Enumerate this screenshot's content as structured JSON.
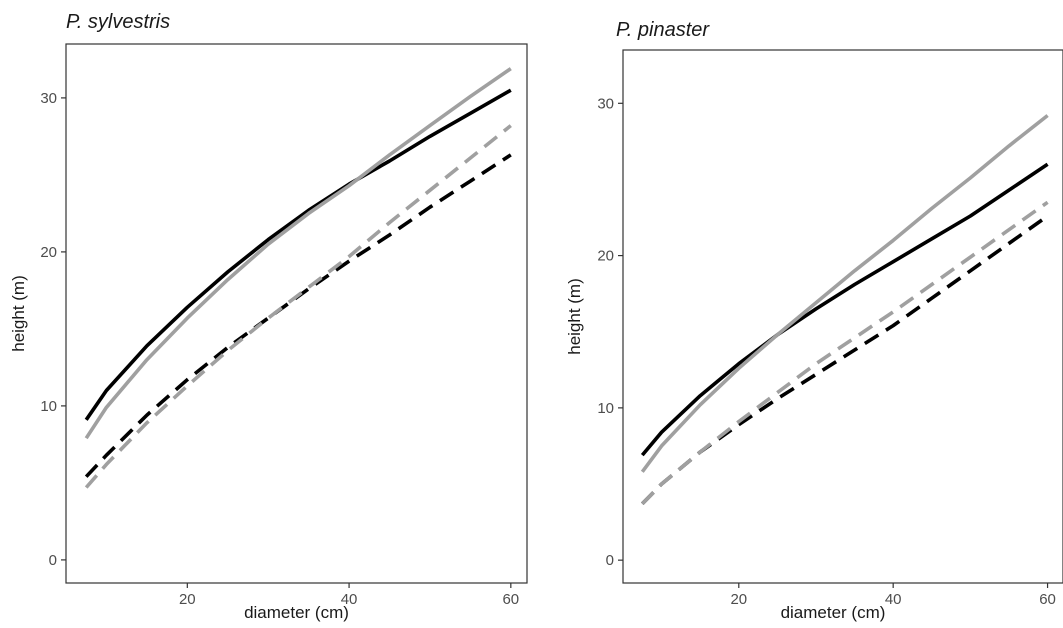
{
  "chart_data": [
    {
      "type": "line",
      "title": "P.  sylvestris",
      "xlabel": "diameter (cm)",
      "ylabel": "height (m)",
      "xlim": [
        5,
        62
      ],
      "ylim": [
        -1.5,
        33.5
      ],
      "xticks": [
        20,
        40,
        60
      ],
      "yticks": [
        0,
        10,
        20,
        30
      ],
      "x_tick_labels": [
        "20",
        "40",
        "60"
      ],
      "y_tick_labels": [
        "0",
        "10",
        "20",
        "30"
      ],
      "grid": false,
      "legend": "none",
      "series": [
        {
          "color": "#000000",
          "dash": "solid",
          "x": [
            7.5,
            10,
            15,
            20,
            25,
            30,
            35,
            40,
            45,
            50,
            55,
            60
          ],
          "values": [
            9.1,
            11.0,
            13.9,
            16.4,
            18.7,
            20.8,
            22.7,
            24.4,
            25.9,
            27.5,
            29.0,
            30.5
          ]
        },
        {
          "color": "#a0a0a0",
          "dash": "solid",
          "x": [
            7.5,
            10,
            15,
            20,
            25,
            30,
            35,
            40,
            45,
            50,
            55,
            60
          ],
          "values": [
            7.9,
            9.9,
            13.0,
            15.7,
            18.2,
            20.5,
            22.5,
            24.3,
            26.3,
            28.2,
            30.1,
            31.9
          ]
        },
        {
          "color": "#000000",
          "dash": "dashed",
          "x": [
            7.5,
            10,
            15,
            20,
            25,
            30,
            35,
            40,
            45,
            50,
            55,
            60
          ],
          "values": [
            5.4,
            6.8,
            9.4,
            11.7,
            13.8,
            15.7,
            17.6,
            19.4,
            21.1,
            22.9,
            24.6,
            26.3
          ]
        },
        {
          "color": "#a0a0a0",
          "dash": "dashed",
          "x": [
            7.5,
            10,
            15,
            20,
            25,
            30,
            35,
            40,
            45,
            50,
            55,
            60
          ],
          "values": [
            4.7,
            6.2,
            8.9,
            11.3,
            13.6,
            15.7,
            17.7,
            19.7,
            21.9,
            24.0,
            26.1,
            28.2
          ]
        }
      ]
    },
    {
      "type": "line",
      "title": "P. pinaster",
      "xlabel": "diameter (cm)",
      "ylabel": "height (m)",
      "xlim": [
        5,
        62
      ],
      "ylim": [
        -1.5,
        33.5
      ],
      "xticks": [
        20,
        40,
        60
      ],
      "yticks": [
        0,
        10,
        20,
        30
      ],
      "x_tick_labels": [
        "20",
        "40",
        "60"
      ],
      "y_tick_labels": [
        "0",
        "10",
        "20",
        "30"
      ],
      "grid": false,
      "legend": "none",
      "series": [
        {
          "color": "#000000",
          "dash": "solid",
          "x": [
            7.5,
            10,
            15,
            20,
            25,
            30,
            35,
            40,
            45,
            50,
            55,
            60
          ],
          "values": [
            6.9,
            8.4,
            10.8,
            12.9,
            14.8,
            16.5,
            18.1,
            19.6,
            21.1,
            22.6,
            24.3,
            26.0
          ]
        },
        {
          "color": "#a0a0a0",
          "dash": "solid",
          "x": [
            7.5,
            10,
            15,
            20,
            25,
            30,
            35,
            40,
            45,
            50,
            55,
            60
          ],
          "values": [
            5.8,
            7.5,
            10.2,
            12.6,
            14.8,
            16.9,
            19.0,
            21.0,
            23.1,
            25.1,
            27.2,
            29.2
          ]
        },
        {
          "color": "#000000",
          "dash": "dashed",
          "x": [
            7.5,
            10,
            15,
            20,
            25,
            30,
            35,
            40,
            45,
            50,
            55,
            60
          ],
          "values": [
            3.7,
            5.0,
            7.1,
            8.9,
            10.6,
            12.2,
            13.8,
            15.4,
            17.2,
            19.0,
            20.8,
            22.6
          ]
        },
        {
          "color": "#a0a0a0",
          "dash": "dashed",
          "x": [
            7.5,
            10,
            15,
            20,
            25,
            30,
            35,
            40,
            45,
            50,
            55,
            60
          ],
          "values": [
            3.7,
            5.0,
            7.1,
            9.1,
            11.0,
            12.9,
            14.6,
            16.3,
            18.1,
            19.9,
            21.7,
            23.5
          ]
        }
      ]
    }
  ]
}
